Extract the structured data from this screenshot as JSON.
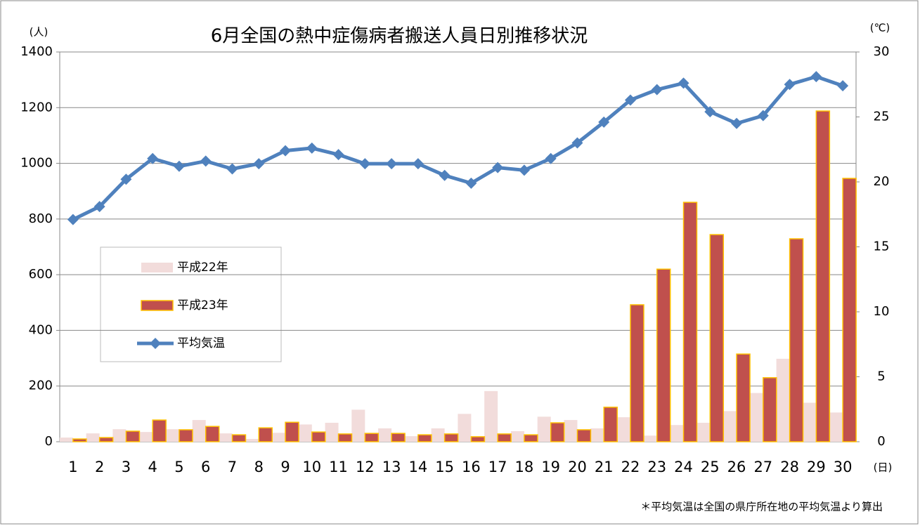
{
  "chart_data": {
    "type": "bar",
    "title": "6月全国の熱中症傷病者搬送人員日別推移状況",
    "y_unit": "(人)",
    "y2_unit": "(℃)",
    "x_unit": "(日)",
    "note": "＊平均気温は全国の県庁所在地の平均気温より算出",
    "categories": [
      "1",
      "2",
      "3",
      "4",
      "5",
      "6",
      "7",
      "8",
      "9",
      "10",
      "11",
      "12",
      "13",
      "14",
      "15",
      "16",
      "17",
      "18",
      "19",
      "20",
      "21",
      "22",
      "23",
      "24",
      "25",
      "26",
      "27",
      "28",
      "29",
      "30"
    ],
    "series": [
      {
        "name": "平成22年",
        "color": "#f2dcdb",
        "values": [
          15,
          30,
          45,
          35,
          45,
          78,
          30,
          10,
          32,
          62,
          68,
          115,
          48,
          20,
          48,
          100,
          182,
          38,
          90,
          78,
          48,
          88,
          22,
          60,
          68,
          110,
          175,
          298,
          140,
          105
        ]
      },
      {
        "name": "平成23年",
        "color": "#c0504d",
        "edge_color": "#ffc000",
        "values": [
          10,
          15,
          38,
          78,
          43,
          55,
          25,
          50,
          70,
          35,
          28,
          30,
          30,
          25,
          28,
          18,
          28,
          25,
          68,
          43,
          124,
          492,
          620,
          860,
          744,
          315,
          230,
          729,
          1188,
          946
        ]
      },
      {
        "name": "平均気温",
        "type": "line",
        "axis": "y2",
        "color": "#4f81bd",
        "values": [
          17.1,
          18.1,
          20.2,
          21.8,
          21.2,
          21.6,
          21.0,
          21.4,
          22.4,
          22.6,
          22.1,
          21.4,
          21.4,
          21.4,
          20.5,
          19.9,
          21.1,
          20.9,
          21.8,
          23.0,
          24.6,
          26.3,
          27.1,
          27.6,
          25.4,
          24.5,
          25.1,
          27.5,
          28.1,
          27.4
        ]
      }
    ],
    "ylim": [
      0,
      1400
    ],
    "yticks": [
      0,
      200,
      400,
      600,
      800,
      1000,
      1200,
      1400
    ],
    "y2lim": [
      0,
      30
    ],
    "y2ticks": [
      0,
      5,
      10,
      15,
      20,
      25,
      30
    ],
    "grid": true
  }
}
